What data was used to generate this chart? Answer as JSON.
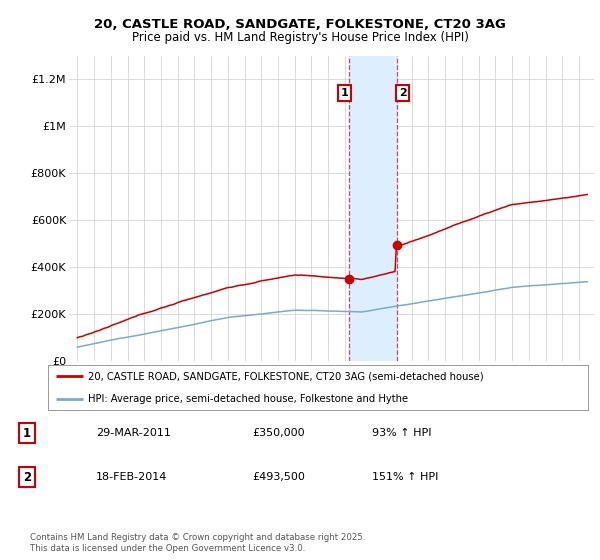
{
  "title_line1": "20, CASTLE ROAD, SANDGATE, FOLKESTONE, CT20 3AG",
  "title_line2": "Price paid vs. HM Land Registry's House Price Index (HPI)",
  "ylim": [
    0,
    1300000
  ],
  "yticks": [
    0,
    200000,
    400000,
    600000,
    800000,
    1000000,
    1200000
  ],
  "ytick_labels": [
    "£0",
    "£200K",
    "£400K",
    "£600K",
    "£800K",
    "£1M",
    "£1.2M"
  ],
  "x_start_year": 1995,
  "x_end_year": 2025,
  "sale1_date": 2011.23,
  "sale1_price": 350000,
  "sale2_date": 2014.12,
  "sale2_price": 493500,
  "red_line_color": "#cc0000",
  "blue_line_color": "#7aaacf",
  "highlight_fill": "#ddeeff",
  "legend1_text": "20, CASTLE ROAD, SANDGATE, FOLKESTONE, CT20 3AG (semi-detached house)",
  "legend2_text": "HPI: Average price, semi-detached house, Folkestone and Hythe",
  "sale_info": [
    {
      "num": "1",
      "date": "29-MAR-2011",
      "price": "£350,000",
      "hpi": "93% ↑ HPI"
    },
    {
      "num": "2",
      "date": "18-FEB-2014",
      "price": "£493,500",
      "hpi": "151% ↑ HPI"
    }
  ],
  "footnote": "Contains HM Land Registry data © Crown copyright and database right 2025.\nThis data is licensed under the Open Government Licence v3.0.",
  "background_color": "#ffffff"
}
